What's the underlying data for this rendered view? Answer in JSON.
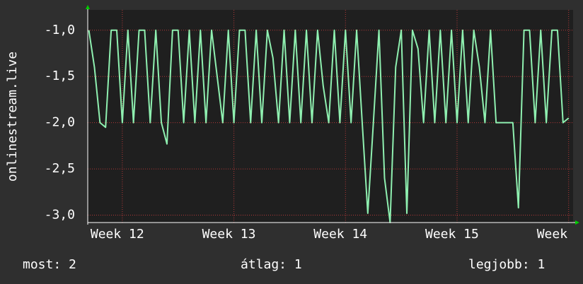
{
  "chart_data": {
    "type": "line",
    "ylabel": "onlinestream.live",
    "xlim": [
      11.69,
      16.04
    ],
    "ylim": [
      -3.08,
      -0.78
    ],
    "yticks": [
      {
        "value": -1,
        "label": "-1,0"
      },
      {
        "value": -1.5,
        "label": "-1,5"
      },
      {
        "value": -2,
        "label": "-2,0"
      },
      {
        "value": -2.5,
        "label": "-2,5"
      },
      {
        "value": -3,
        "label": "-3,0"
      }
    ],
    "xticks": [
      {
        "value": 12,
        "label": "Week 12"
      },
      {
        "value": 13,
        "label": "Week 13"
      },
      {
        "value": 14,
        "label": "Week 14"
      },
      {
        "value": 15,
        "label": "Week 15"
      },
      {
        "value": 16,
        "label": "Week"
      }
    ],
    "grid": true,
    "x": [
      11.7,
      11.75,
      11.8,
      11.85,
      11.9,
      11.95,
      12.0,
      12.05,
      12.1,
      12.15,
      12.2,
      12.25,
      12.3,
      12.35,
      12.4,
      12.45,
      12.5,
      12.55,
      12.6,
      12.65,
      12.7,
      12.75,
      12.8,
      12.85,
      12.9,
      12.95,
      13.0,
      13.05,
      13.1,
      13.15,
      13.2,
      13.25,
      13.3,
      13.35,
      13.4,
      13.45,
      13.5,
      13.55,
      13.6,
      13.65,
      13.7,
      13.75,
      13.8,
      13.85,
      13.9,
      13.95,
      14.0,
      14.05,
      14.1,
      14.15,
      14.2,
      14.25,
      14.3,
      14.35,
      14.4,
      14.45,
      14.5,
      14.55,
      14.6,
      14.65,
      14.7,
      14.75,
      14.8,
      14.85,
      14.9,
      14.95,
      15.0,
      15.05,
      15.1,
      15.15,
      15.2,
      15.25,
      15.3,
      15.35,
      15.4,
      15.45,
      15.5,
      15.55,
      15.6,
      15.65,
      15.7,
      15.75,
      15.8,
      15.85,
      15.9,
      15.95,
      16.0
    ],
    "series": [
      {
        "color": "#8ff0b0",
        "values": [
          -1,
          -1.4,
          -2,
          -2.05,
          -1,
          -1,
          -2,
          -1,
          -2,
          -1,
          -1,
          -2,
          -1,
          -2,
          -2.23,
          -1,
          -1,
          -2,
          -1,
          -2,
          -1,
          -2,
          -1,
          -1.5,
          -2,
          -1,
          -2,
          -1,
          -1,
          -2,
          -1,
          -2,
          -1,
          -1.3,
          -2,
          -1,
          -2,
          -1,
          -2,
          -1,
          -2,
          -1,
          -1.6,
          -2,
          -1,
          -2,
          -1,
          -2,
          -1,
          -2,
          -2.98,
          -2,
          -1,
          -2.6,
          -3.08,
          -1.4,
          -1,
          -2.98,
          -1,
          -1.2,
          -2,
          -1,
          -2,
          -1,
          -2,
          -1,
          -2,
          -1,
          -2,
          -1,
          -1.4,
          -2,
          -1,
          -2,
          -2,
          -2,
          -2,
          -2.92,
          -1,
          -1,
          -2,
          -1,
          -2,
          -1,
          -1,
          -2,
          -1.95
        ]
      }
    ],
    "footer": [
      "most: 2",
      "átlag: 1",
      "legjobb: 1"
    ]
  }
}
